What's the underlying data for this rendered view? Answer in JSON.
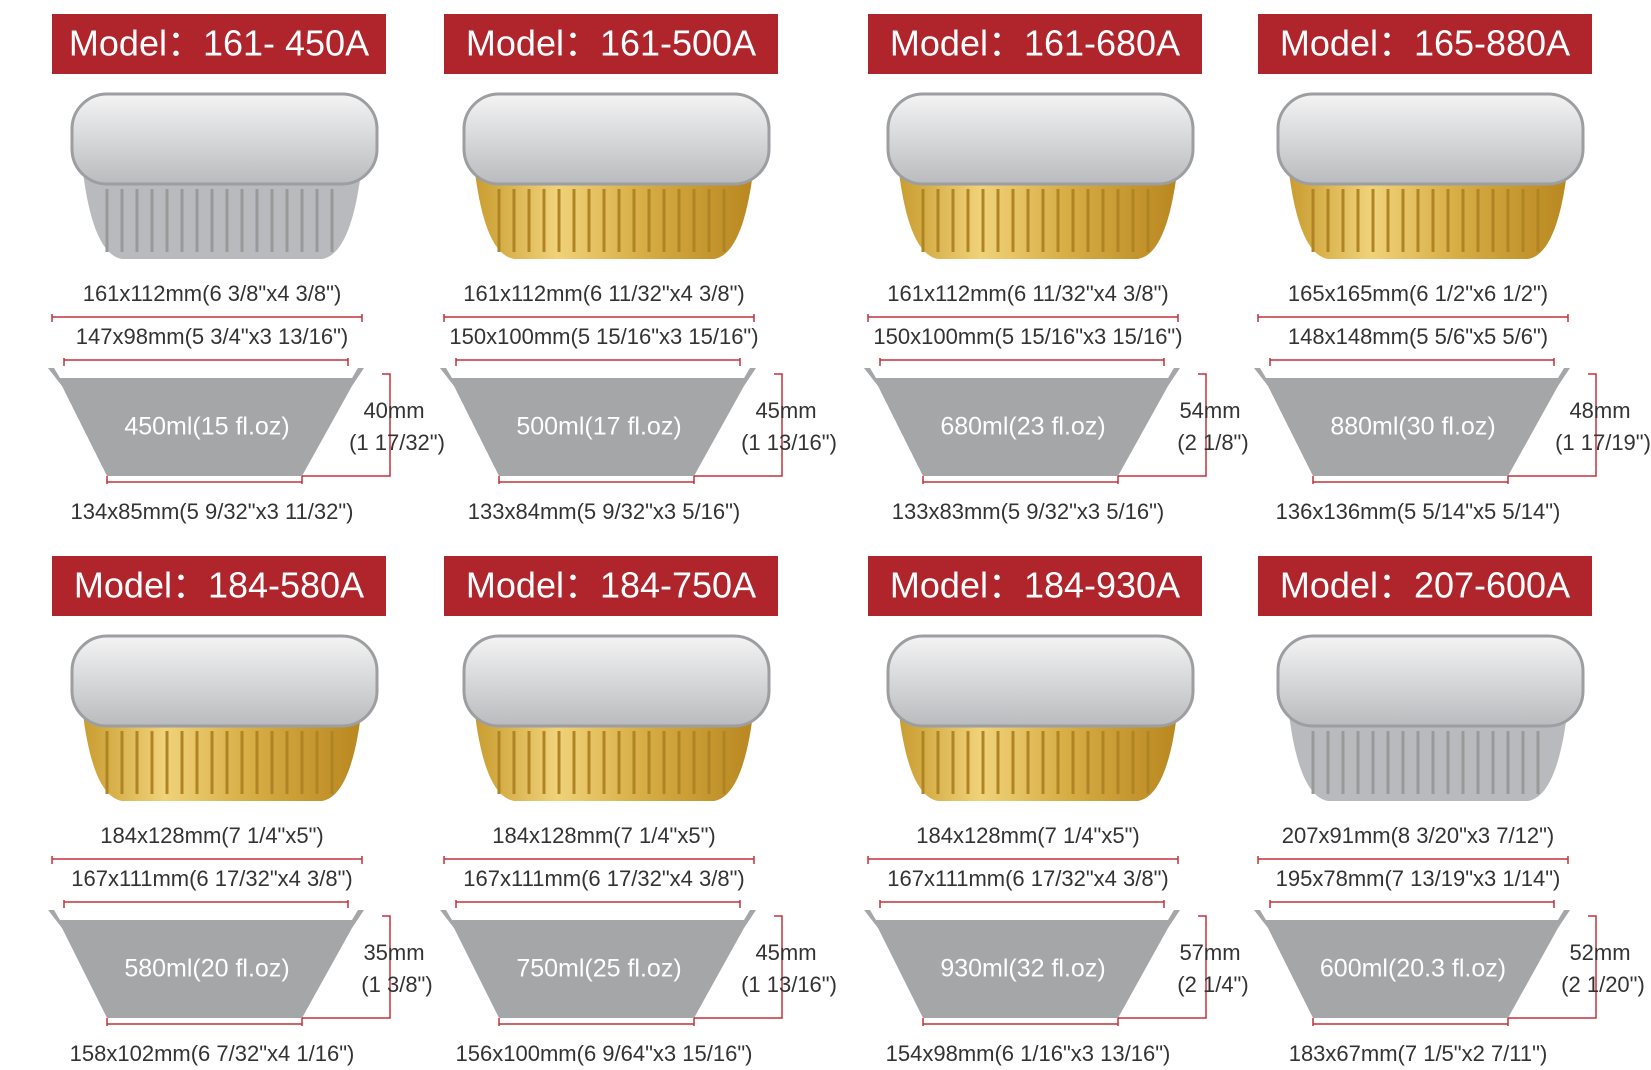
{
  "items": [
    {
      "model": "Model：161- 450A",
      "top_size": "161x112mm(6 3/8\"x4 3/8\")",
      "rim_size": "147x98mm(5 3/4\"x3 13/16\")",
      "capacity": "450ml(15 fl.oz)",
      "height": "40mm",
      "height_inch": "(1 17/32\")",
      "bottom_size": "134x85mm(5 9/32\"x3 11/32\")"
    },
    {
      "model": "Model：161-500A",
      "top_size": "161x112mm(6 11/32\"x4 3/8\")",
      "rim_size": "150x100mm(5 15/16\"x3 15/16\")",
      "capacity": "500ml(17 fl.oz)",
      "height": "45mm",
      "height_inch": "(1 13/16\")",
      "bottom_size": "133x84mm(5 9/32\"x3 5/16\")"
    },
    {
      "model": "Model：161-680A",
      "top_size": "161x112mm(6 11/32\"x4 3/8\")",
      "rim_size": "150x100mm(5 15/16\"x3 15/16\")",
      "capacity": "680ml(23 fl.oz)",
      "height": "54mm",
      "height_inch": "(2 1/8\")",
      "bottom_size": "133x83mm(5 9/32\"x3 5/16\")"
    },
    {
      "model": "Model：165-880A",
      "top_size": "165x165mm(6 1/2\"x6 1/2\")",
      "rim_size": "148x148mm(5 5/6\"x5 5/6\")",
      "capacity": "880ml(30 fl.oz)",
      "height": "48mm",
      "height_inch": "(1 17/19\")",
      "bottom_size": "136x136mm(5 5/14\"x5 5/14\")"
    },
    {
      "model": "Model：184-580A",
      "top_size": "184x128mm(7 1/4\"x5\")",
      "rim_size": "167x111mm(6 17/32\"x4 3/8\")",
      "capacity": "580ml(20 fl.oz)",
      "height": "35mm",
      "height_inch": "(1 3/8\")",
      "bottom_size": "158x102mm(6 7/32\"x4 1/16\")"
    },
    {
      "model": "Model：184-750A",
      "top_size": "184x128mm(7 1/4\"x5\")",
      "rim_size": "167x111mm(6 17/32\"x4 3/8\")",
      "capacity": "750ml(25 fl.oz)",
      "height": "45mm",
      "height_inch": "(1 13/16\")",
      "bottom_size": "156x100mm(6 9/64\"x3 15/16\")"
    },
    {
      "model": "Model：184-930A",
      "top_size": "184x128mm(7 1/4\"x5\")",
      "rim_size": "167x111mm(6 17/32\"x4 3/8\")",
      "capacity": "930ml(32 fl.oz)",
      "height": "57mm",
      "height_inch": "(2 1/4\")",
      "bottom_size": "154x98mm(6 1/16\"x3 13/16\")"
    },
    {
      "model": "Model：207-600A",
      "top_size": "207x91mm(8 3/20\"x3 7/12\")",
      "rim_size": "195x78mm(7 13/19\"x3 1/14\")",
      "capacity": "600ml(20.3 fl.oz)",
      "height": "52mm",
      "height_inch": "(2 1/20\")",
      "bottom_size": "183x67mm(7 1/5\"x2 7/11\")"
    }
  ]
}
